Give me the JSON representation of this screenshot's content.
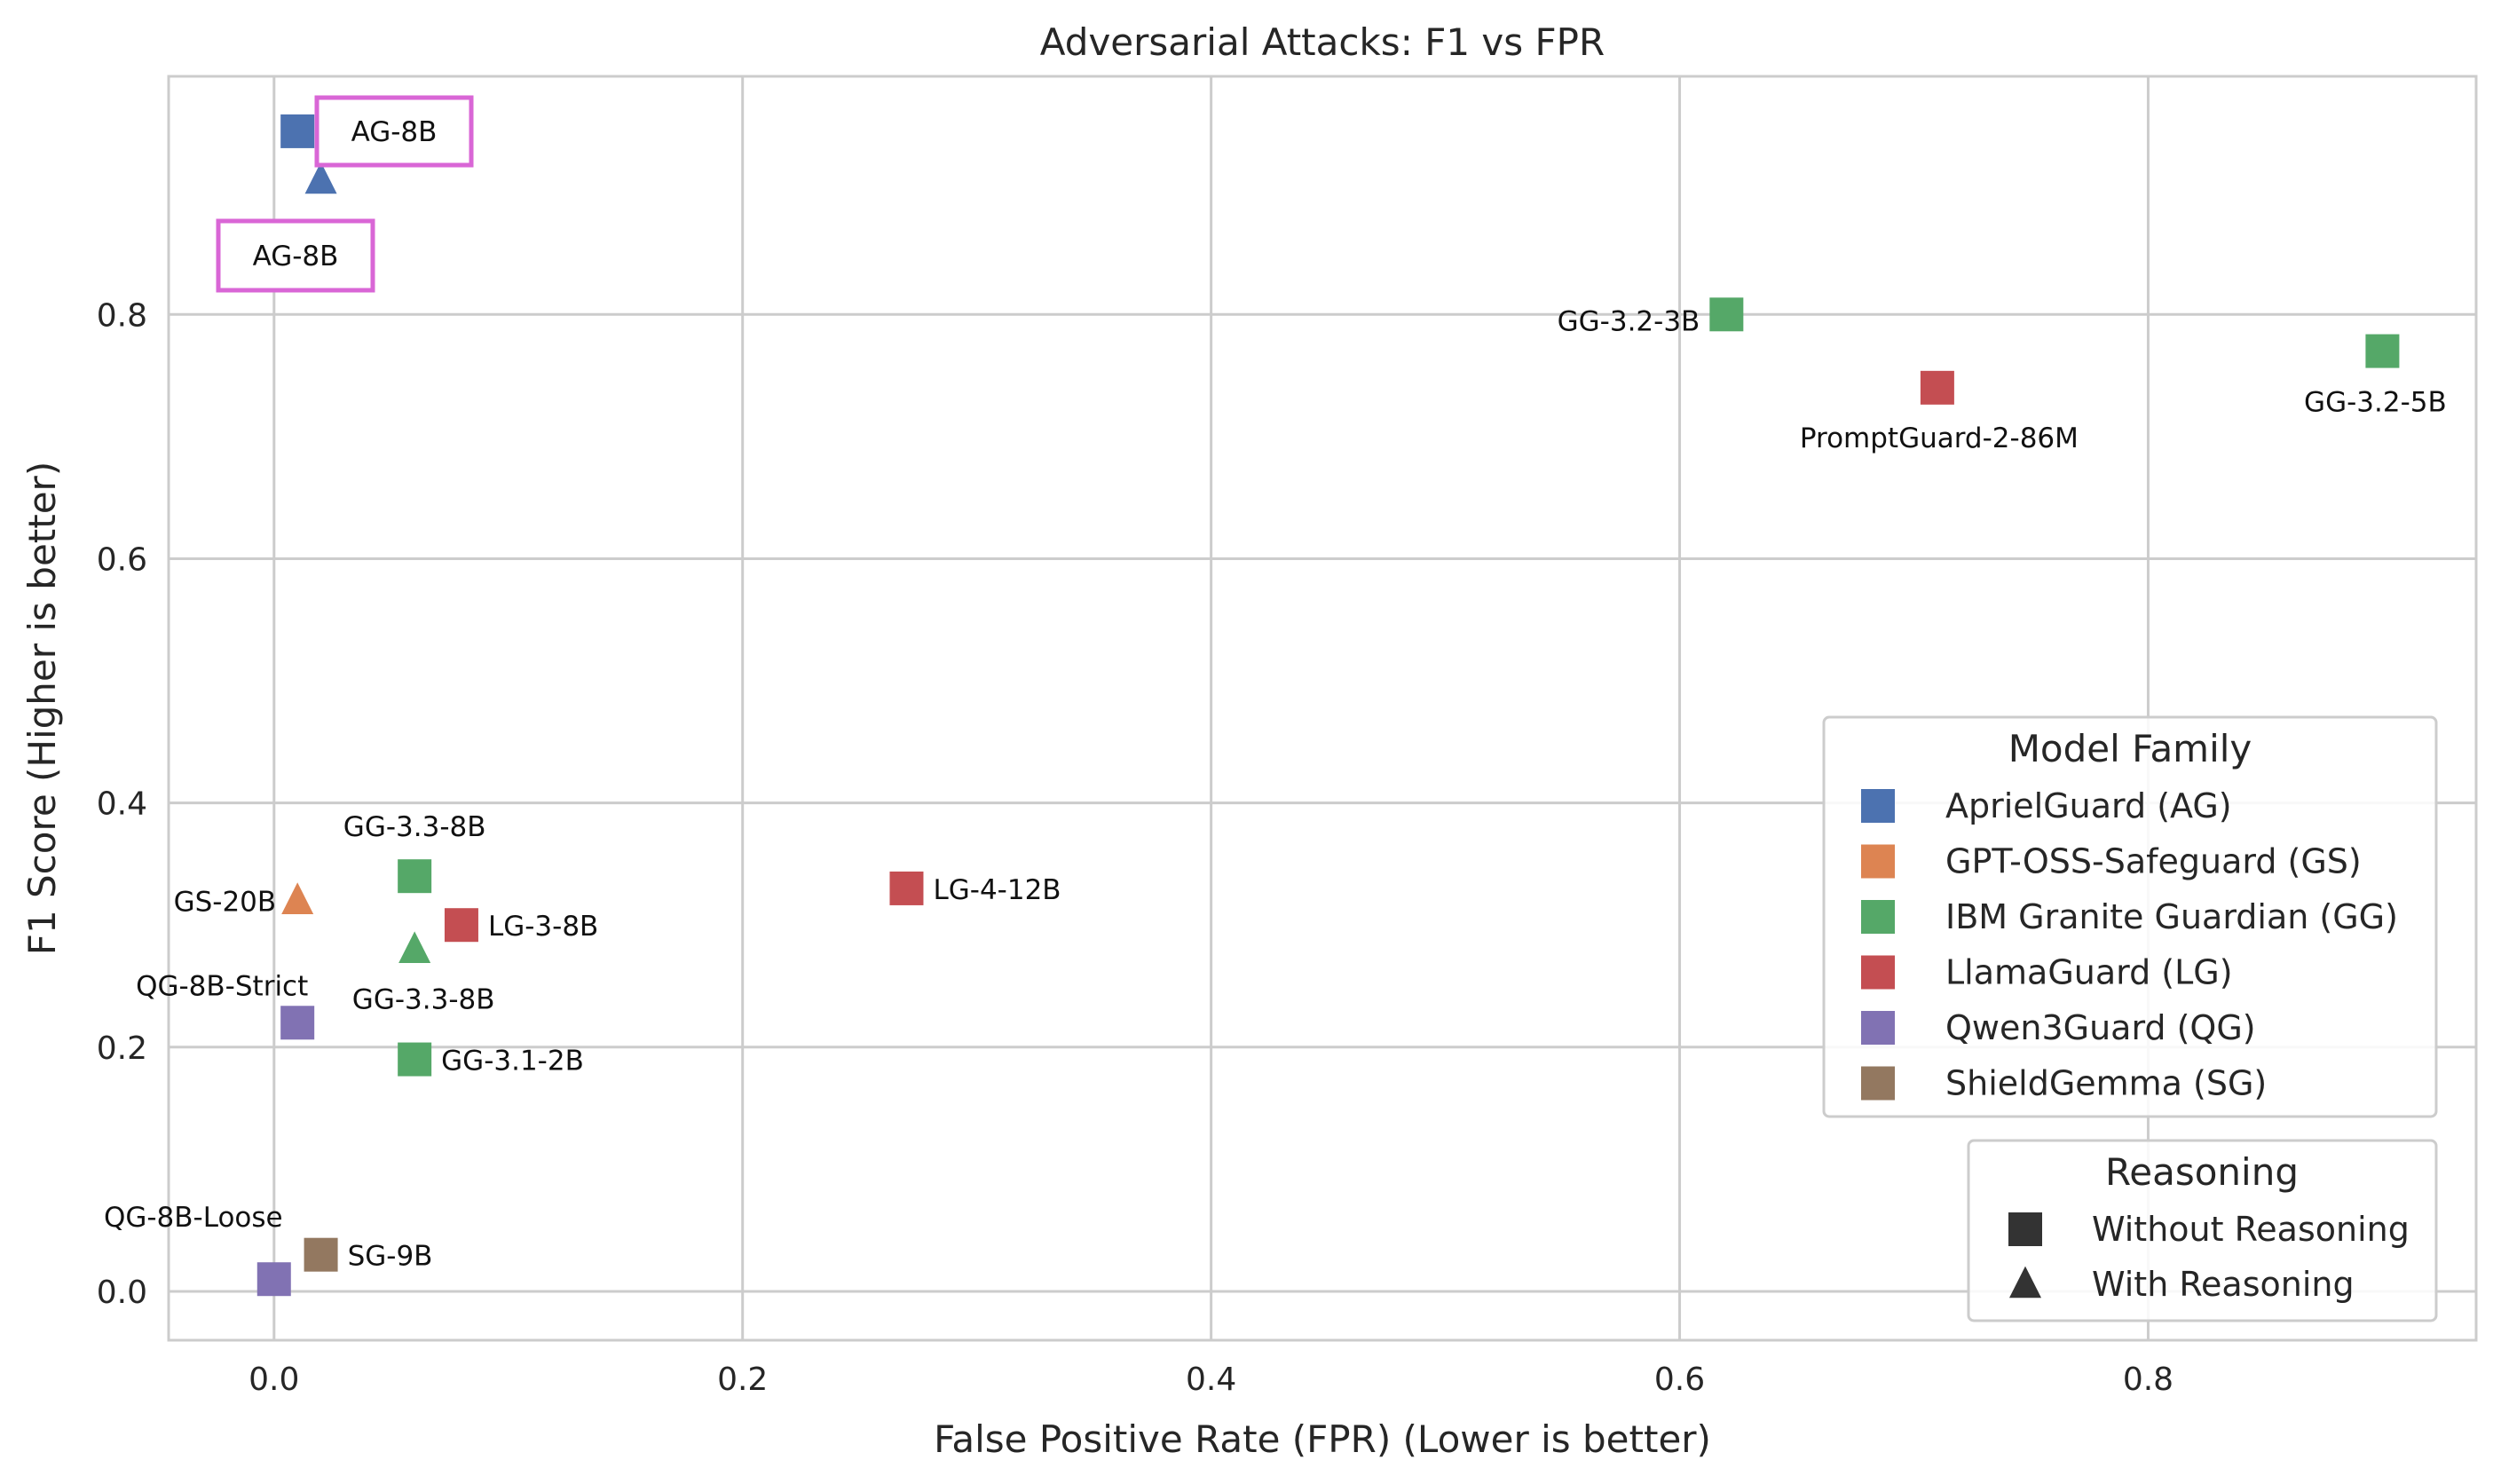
{
  "chart_data": {
    "type": "scatter",
    "title": "Adversarial Attacks: F1 vs FPR",
    "xlabel": "False Positive Rate (FPR) (Lower is better)",
    "ylabel": "F1 Score (Higher is better)",
    "xlim": [
      -0.045,
      0.94
    ],
    "ylim": [
      -0.04,
      0.995
    ],
    "xticks": [
      0.0,
      0.2,
      0.4,
      0.6,
      0.8
    ],
    "xtick_labels": [
      "0.0",
      "0.2",
      "0.4",
      "0.6",
      "0.8"
    ],
    "yticks": [
      0.0,
      0.2,
      0.4,
      0.6,
      0.8
    ],
    "ytick_labels": [
      "0.0",
      "0.2",
      "0.4",
      "0.6",
      "0.8"
    ],
    "grid": true,
    "families": [
      {
        "key": "AG",
        "name": "AprielGuard (AG)",
        "color": "#4c72b0"
      },
      {
        "key": "GS",
        "name": "GPT-OSS-Safeguard (GS)",
        "color": "#dd8452"
      },
      {
        "key": "GG",
        "name": "IBM Granite Guardian (GG)",
        "color": "#55a868"
      },
      {
        "key": "LG",
        "name": "LlamaGuard (LG)",
        "color": "#c44e52"
      },
      {
        "key": "QG",
        "name": "Qwen3Guard (QG)",
        "color": "#8172b3"
      },
      {
        "key": "SG",
        "name": "ShieldGemma (SG)",
        "color": "#937860"
      }
    ],
    "markers": [
      {
        "key": "without",
        "name": "Without Reasoning",
        "shape": "square"
      },
      {
        "key": "with",
        "name": "With Reasoning",
        "shape": "triangle"
      }
    ],
    "legend_family_title": "Model Family",
    "legend_marker_title": "Reasoning",
    "legend_position": "lower-right",
    "highlight_color": "#d966d6",
    "points": [
      {
        "label": "AG-8B",
        "family": "AG",
        "reasoning": "without",
        "x": 0.01,
        "y": 0.95,
        "highlight": true
      },
      {
        "label": "AG-8B",
        "family": "AG",
        "reasoning": "with",
        "x": 0.02,
        "y": 0.91,
        "highlight": true
      },
      {
        "label": "GG-3.2-3B",
        "family": "GG",
        "reasoning": "without",
        "x": 0.62,
        "y": 0.8
      },
      {
        "label": "GG-3.2-5B",
        "family": "GG",
        "reasoning": "without",
        "x": 0.9,
        "y": 0.77
      },
      {
        "label": "PromptGuard-2-86M",
        "family": "LG",
        "reasoning": "without",
        "x": 0.71,
        "y": 0.74
      },
      {
        "label": "GG-3.3-8B",
        "family": "GG",
        "reasoning": "without",
        "x": 0.06,
        "y": 0.34
      },
      {
        "label": "GS-20B",
        "family": "GS",
        "reasoning": "with",
        "x": 0.01,
        "y": 0.32
      },
      {
        "label": "LG-3-8B",
        "family": "LG",
        "reasoning": "without",
        "x": 0.08,
        "y": 0.3
      },
      {
        "label": "GG-3.3-8B",
        "family": "GG",
        "reasoning": "with",
        "x": 0.06,
        "y": 0.28
      },
      {
        "label": "LG-4-12B",
        "family": "LG",
        "reasoning": "without",
        "x": 0.27,
        "y": 0.33
      },
      {
        "label": "QG-8B-Strict",
        "family": "QG",
        "reasoning": "without",
        "x": 0.01,
        "y": 0.22
      },
      {
        "label": "GG-3.1-2B",
        "family": "GG",
        "reasoning": "without",
        "x": 0.06,
        "y": 0.19
      },
      {
        "label": "QG-8B-Loose",
        "family": "QG",
        "reasoning": "without",
        "x": 0.0,
        "y": 0.01
      },
      {
        "label": "SG-9B",
        "family": "SG",
        "reasoning": "without",
        "x": 0.02,
        "y": 0.03
      }
    ]
  }
}
